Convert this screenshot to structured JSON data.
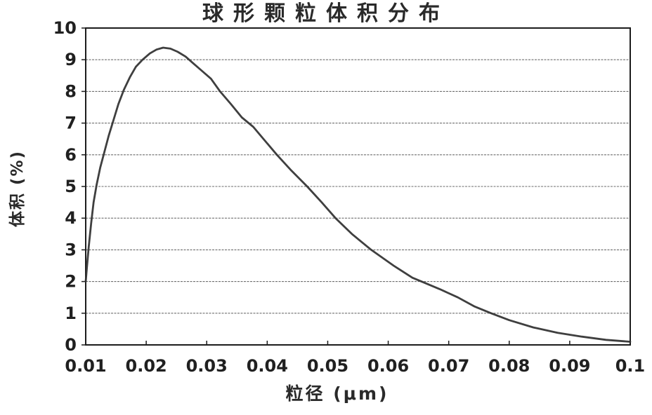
{
  "chart_data": {
    "type": "line",
    "title": "球形颗粒体积分布",
    "xlabel": "粒径 (μm)",
    "ylabel": "体积 (%)",
    "xlim": [
      0.01,
      0.1
    ],
    "ylim": [
      0,
      10
    ],
    "x_tick_values": [
      0.01,
      0.02,
      0.03,
      0.04,
      0.05,
      0.06,
      0.07,
      0.08,
      0.09,
      0.1
    ],
    "x_tick_labels": [
      "0.01",
      "0.02",
      "0.03",
      "0.04",
      "0.05",
      "0.06",
      "0.07",
      "0.08",
      "0.09",
      "0.1"
    ],
    "y_tick_values": [
      0,
      1,
      2,
      3,
      4,
      5,
      6,
      7,
      8,
      9,
      10
    ],
    "y_tick_labels": [
      "0",
      "1",
      "2",
      "3",
      "4",
      "5",
      "6",
      "7",
      "8",
      "9",
      "10"
    ],
    "grid": "horizontal",
    "legend": "none",
    "series": [
      {
        "name": "体积分布",
        "x": [
          0.01,
          0.0102,
          0.0105,
          0.0109,
          0.0113,
          0.0118,
          0.0124,
          0.0131,
          0.0138,
          0.0146,
          0.0154,
          0.0163,
          0.0173,
          0.0183,
          0.0194,
          0.0206,
          0.0217,
          0.0228,
          0.024,
          0.0252,
          0.0265,
          0.0278,
          0.0292,
          0.0307,
          0.0322,
          0.034,
          0.0358,
          0.0377,
          0.0396,
          0.0416,
          0.044,
          0.0466,
          0.049,
          0.0513,
          0.054,
          0.0572,
          0.0609,
          0.064,
          0.0655,
          0.0685,
          0.0715,
          0.0742,
          0.077,
          0.08,
          0.084,
          0.088,
          0.092,
          0.096,
          0.1
        ],
        "y": [
          2.0,
          2.45,
          3.1,
          3.85,
          4.5,
          5.05,
          5.6,
          6.1,
          6.6,
          7.1,
          7.6,
          8.05,
          8.45,
          8.78,
          9.0,
          9.2,
          9.32,
          9.38,
          9.35,
          9.25,
          9.1,
          8.88,
          8.65,
          8.4,
          8.0,
          7.6,
          7.18,
          6.88,
          6.45,
          6.0,
          5.5,
          5.0,
          4.5,
          4.0,
          3.5,
          3.0,
          2.5,
          2.12,
          2.0,
          1.76,
          1.5,
          1.22,
          1.0,
          0.78,
          0.55,
          0.38,
          0.26,
          0.16,
          0.1
        ]
      }
    ],
    "peak": {
      "x": 0.023,
      "y": 9.38
    },
    "colors": {
      "line": "#2f2f2f",
      "grid": "#6e6e6e",
      "axis": "#1c1c1c",
      "text": "#202020",
      "background": "#ffffff"
    }
  }
}
